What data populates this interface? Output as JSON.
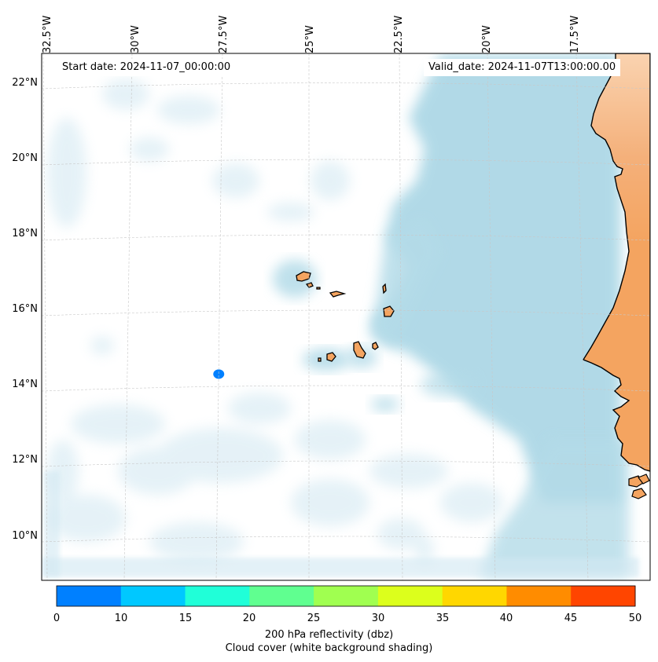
{
  "map": {
    "start_date": "Start date: 2024-11-07_00:00:00",
    "valid_date": "Valid_date: 2024-11-07T13:00:00.00",
    "longitude_labels": [
      "32.5°W",
      "30°W",
      "27.5°W",
      "25°W",
      "22.5°W",
      "20°W",
      "17.5°W"
    ],
    "latitude_labels": [
      "22°N",
      "20°N",
      "18°N",
      "16°N",
      "14°N",
      "12°N",
      "10°N"
    ],
    "colors": {
      "land": "#f4a460",
      "cloud": "#add8e6",
      "coastline": "#000000",
      "gridline": "#c8c8c8"
    },
    "reflectivity_cells": [
      {
        "name": "reflectivity-cell",
        "lon": -27.55,
        "lat": 14.45,
        "dbz": 5
      }
    ]
  },
  "colorbar": {
    "ticks": [
      "0",
      "10",
      "15",
      "20",
      "25",
      "30",
      "35",
      "40",
      "45",
      "50"
    ],
    "colors": [
      "#0080ff",
      "#00c8ff",
      "#20ffd8",
      "#60ff90",
      "#a0ff50",
      "#dcff1c",
      "#ffd700",
      "#ff8c00",
      "#ff4500"
    ],
    "label": "200 hPa reflectivity (dbz)",
    "sublabel": "Cloud cover (white background shading)"
  }
}
